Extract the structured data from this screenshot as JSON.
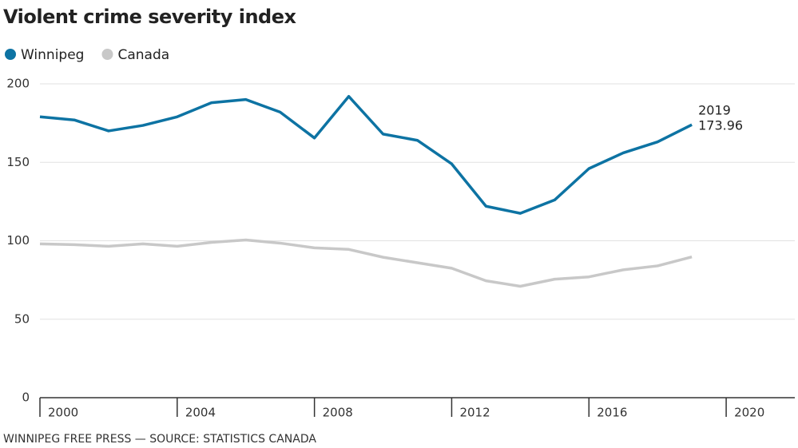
{
  "chart_data": {
    "type": "line",
    "title": "Violent crime severity index",
    "source": "WINNIPEG FREE PRESS — SOURCE: STATISTICS CANADA",
    "x": [
      2000,
      2001,
      2002,
      2003,
      2004,
      2005,
      2006,
      2007,
      2008,
      2009,
      2010,
      2011,
      2012,
      2013,
      2014,
      2015,
      2016,
      2017,
      2018,
      2019
    ],
    "series": [
      {
        "name": "Winnipeg",
        "color": "#0d73a3",
        "values": [
          179,
          177,
          170,
          173.5,
          179,
          188,
          190,
          182,
          165.5,
          192,
          168,
          164,
          149,
          122,
          117.5,
          126,
          146,
          156,
          163,
          173.96
        ]
      },
      {
        "name": "Canada",
        "color": "#c8c8c8",
        "values": [
          98,
          97.5,
          96.5,
          98,
          96.5,
          99,
          100.5,
          98.5,
          95.5,
          94.5,
          89.5,
          86,
          82.5,
          74.5,
          71,
          75.5,
          77,
          81.5,
          84,
          89.7
        ]
      }
    ],
    "xlim": [
      2000,
      2022
    ],
    "xticks": [
      2000,
      2004,
      2008,
      2012,
      2016,
      2020
    ],
    "ylim": [
      0,
      200
    ],
    "yticks": [
      0,
      50,
      100,
      150,
      200
    ],
    "grid": true,
    "legend": "top-left"
  }
}
